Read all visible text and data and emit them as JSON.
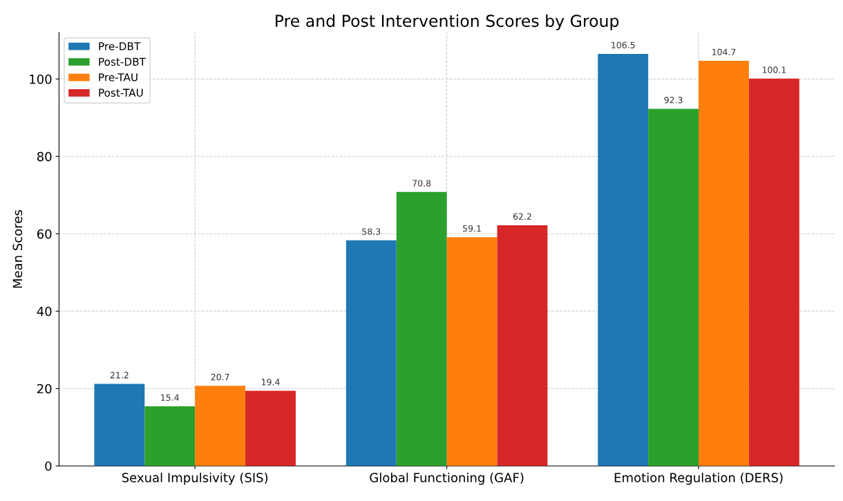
{
  "chart_data": {
    "type": "bar",
    "title": "Pre and Post Intervention Scores by Group",
    "ylabel": "Mean Scores",
    "categories": [
      "Sexual Impulsivity (SIS)",
      "Global Functioning (GAF)",
      "Emotion Regulation (DERS)"
    ],
    "series": [
      {
        "name": "Pre-DBT",
        "color": "#1f77b4",
        "values": [
          21.2,
          58.3,
          106.5
        ]
      },
      {
        "name": "Post-DBT",
        "color": "#2ca02c",
        "values": [
          15.4,
          70.8,
          92.3
        ]
      },
      {
        "name": "Pre-TAU",
        "color": "#ff7f0e",
        "values": [
          20.7,
          59.1,
          104.7
        ]
      },
      {
        "name": "Post-TAU",
        "color": "#d62728",
        "values": [
          19.4,
          62.2,
          100.1
        ]
      }
    ],
    "ylim": [
      0,
      112
    ],
    "yticks": [
      0,
      20,
      40,
      60,
      80,
      100
    ],
    "grid": true,
    "legend": "top left",
    "data_labels": true
  }
}
